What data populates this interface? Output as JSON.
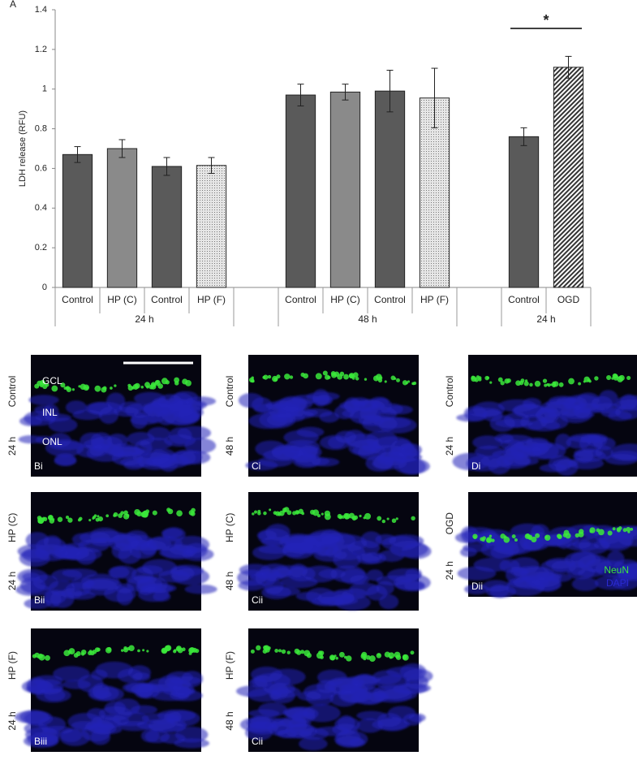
{
  "panel_label": "A",
  "chart_data": {
    "type": "bar",
    "ylabel": "LDH release (RFU)",
    "categories": [
      "Control",
      "HP (C)",
      "Control",
      "HP (F)",
      null,
      "Control",
      "HP (C)",
      "Control",
      "HP (F)",
      null,
      "Control",
      "OGD"
    ],
    "values": [
      0.67,
      0.7,
      0.61,
      0.615,
      null,
      0.97,
      0.985,
      0.99,
      0.955,
      null,
      0.76,
      1.11
    ],
    "errors": [
      0.04,
      0.045,
      0.045,
      0.04,
      null,
      0.055,
      0.04,
      0.105,
      0.15,
      null,
      0.045,
      0.055
    ],
    "colors": [
      "#5a5a5a",
      "#8a8a8a",
      "#5a5a5a",
      "#e6e6e6",
      null,
      "#5a5a5a",
      "#8a8a8a",
      "#5a5a5a",
      "#e6e6e6",
      null,
      "#5a5a5a",
      "#ffffff"
    ],
    "patterns": [
      null,
      null,
      null,
      "dots",
      null,
      null,
      null,
      null,
      "dots",
      null,
      null,
      "hatch"
    ],
    "group_labels": [
      "24 h",
      "48 h",
      "24 h"
    ],
    "annotation": "*",
    "ylim": [
      0,
      1.4
    ],
    "yticks": [
      0,
      0.2,
      0.4,
      0.6,
      0.8,
      1,
      1.2,
      1.4
    ]
  },
  "layers": [
    "GCL",
    "INL",
    "ONL"
  ],
  "stain_legend": [
    "NeuN",
    "DAPI"
  ],
  "panels": [
    {
      "label": "Bi",
      "treatment": "Control",
      "time": "24 h"
    },
    {
      "label": "Bii",
      "treatment": "HP (C)",
      "time": "24 h"
    },
    {
      "label": "Biii",
      "treatment": "HP (F)",
      "time": "24 h"
    },
    {
      "label": "Ci",
      "treatment": "Control",
      "time": "48 h"
    },
    {
      "label": "Cii",
      "treatment": "HP (C)",
      "time": "48 h"
    },
    {
      "label": "Cii",
      "treatment": "HP (F)",
      "time": "48 h"
    },
    {
      "label": "Di",
      "treatment": "Control",
      "time": "24 h"
    },
    {
      "label": "Dii",
      "treatment": "OGD",
      "time": "24 h"
    }
  ]
}
